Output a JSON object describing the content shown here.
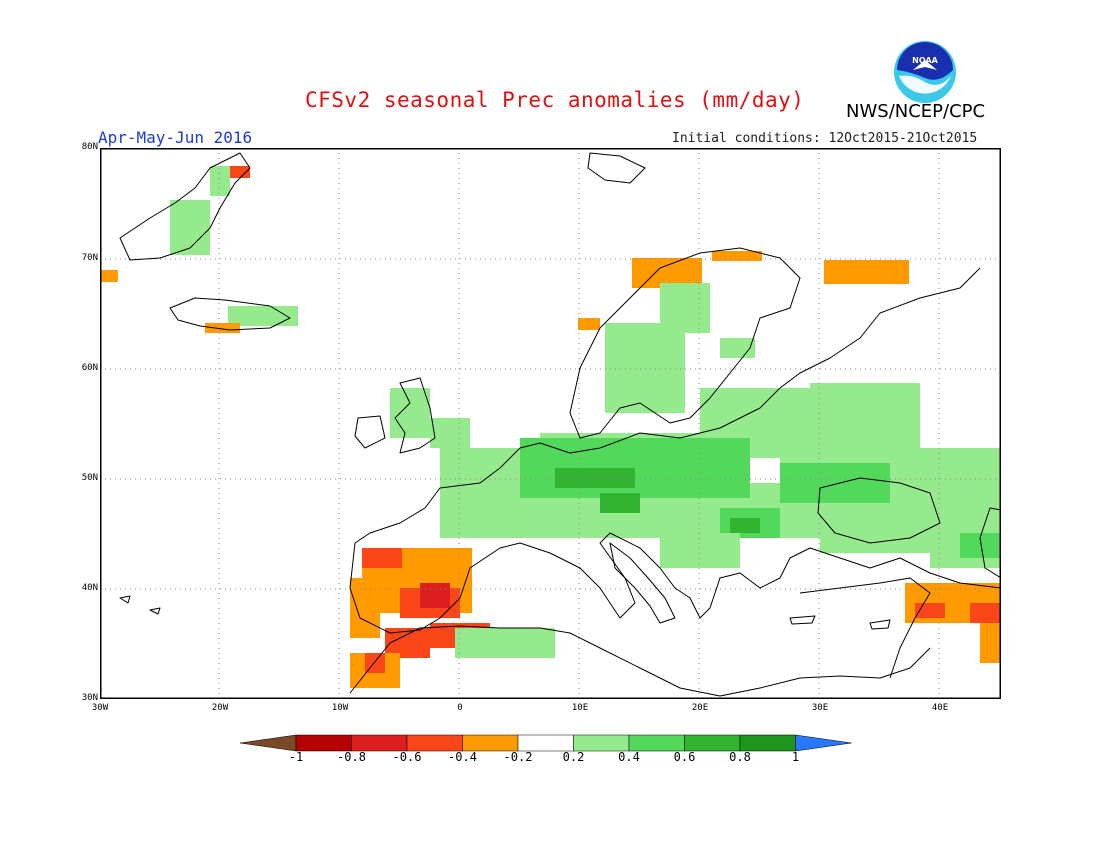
{
  "title": "CFSv2 seasonal Prec anomalies (mm/day)",
  "period": "Apr-May-Jun 2016",
  "initial_conditions": "Initial conditions: 12Oct2015-21Oct2015",
  "agency": "NWS/NCEP/CPC",
  "logo_text": "NOAA",
  "lat_labels": [
    "80N",
    "70N",
    "60N",
    "50N",
    "40N",
    "30N"
  ],
  "lon_labels": [
    "30W",
    "20W",
    "10W",
    "0",
    "10E",
    "20E",
    "30E",
    "40E"
  ],
  "colorbar": {
    "labels": [
      "-1",
      "-0.8",
      "-0.6",
      "-0.4",
      "-0.2",
      "0.2",
      "0.4",
      "0.6",
      "0.8",
      "1"
    ],
    "colors": [
      "#7a4a28",
      "#b40000",
      "#dc1e1e",
      "#fa4618",
      "#ff9a00",
      "#ffffff",
      "#96ea8e",
      "#52d85a",
      "#32b432",
      "#1e961e",
      "#2878ff"
    ]
  },
  "colors": {
    "title": "#e01010",
    "period": "#1c3cdc",
    "land_outline": "#000000",
    "grid": "#888888"
  }
}
